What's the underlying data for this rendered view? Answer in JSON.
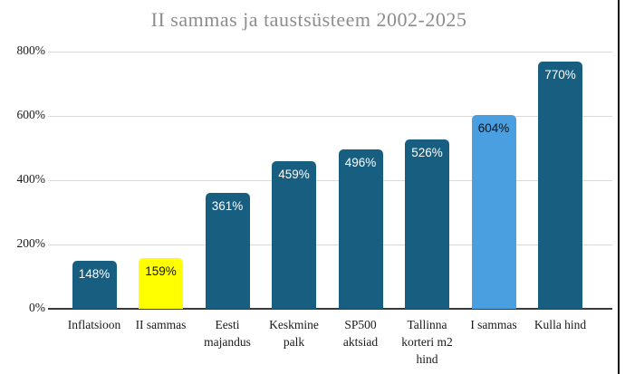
{
  "chart_data": {
    "type": "bar",
    "title": "II sammas ja taustsüsteem 2002-2025",
    "categories": [
      "Inflatsioon",
      "II sammas",
      "Eesti majandus",
      "Keskmine palk",
      "SP500 aktsiad",
      "Tallinna korteri m2 hind",
      "I sammas",
      "Kulla hind"
    ],
    "values": [
      148,
      159,
      361,
      459,
      496,
      526,
      604,
      770
    ],
    "value_labels": [
      "148%",
      "159%",
      "361%",
      "459%",
      "496%",
      "526%",
      "604%",
      "770%"
    ],
    "bar_colors": [
      "#175e80",
      "#ffff00",
      "#175e80",
      "#175e80",
      "#175e80",
      "#175e80",
      "#4a9fe0",
      "#175e80"
    ],
    "value_label_colors": [
      "#ffffff",
      "#111111",
      "#ffffff",
      "#ffffff",
      "#ffffff",
      "#ffffff",
      "#111111",
      "#ffffff"
    ],
    "xlabel": "",
    "ylabel": "",
    "ylim": [
      0,
      800
    ],
    "y_tick_values": [
      0,
      200,
      400,
      600,
      800
    ],
    "y_tick_labels": [
      "0%",
      "200%",
      "400%",
      "600%",
      "800%"
    ],
    "grid": true,
    "legend_position": "none"
  },
  "frame": {
    "background_color": "#ffffff",
    "grid_color": "#d9d9d9",
    "axis_color": "#3a3a3a",
    "title_color": "#8d8d8d",
    "right_border_color": "#0d0d0d"
  }
}
